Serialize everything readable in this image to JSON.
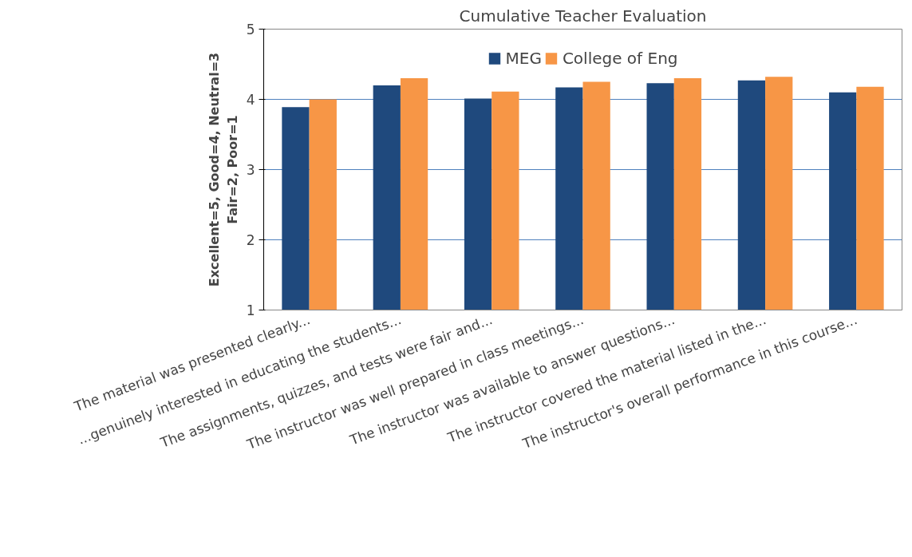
{
  "chart_data": {
    "type": "bar",
    "title": "Cumulative Teacher Evaluation",
    "ylabel": "Excellent=5, Good=4, Neutral=3\nFair=2, Poor=1",
    "categories": [
      "The material was presented clearly...",
      "...genuinely interested in educating the students...",
      "The assignments, quizzes, and tests were fair and...",
      "The instructor was well prepared in class meetings...",
      "The instructor was available to answer questions...",
      "The instructor covered the material listed in the...",
      "The instructor's overall performance in this course..."
    ],
    "series": [
      {
        "name": "MEG",
        "color": "#1f497d",
        "values": [
          3.89,
          4.2,
          4.01,
          4.17,
          4.23,
          4.27,
          4.1
        ]
      },
      {
        "name": "College of Eng",
        "color": "#f79646",
        "values": [
          4.0,
          4.3,
          4.11,
          4.25,
          4.3,
          4.32,
          4.18
        ]
      }
    ],
    "ylim": [
      1,
      5
    ],
    "yticks": [
      1,
      2,
      3,
      4,
      5
    ],
    "grid": "y",
    "legend": "top"
  }
}
